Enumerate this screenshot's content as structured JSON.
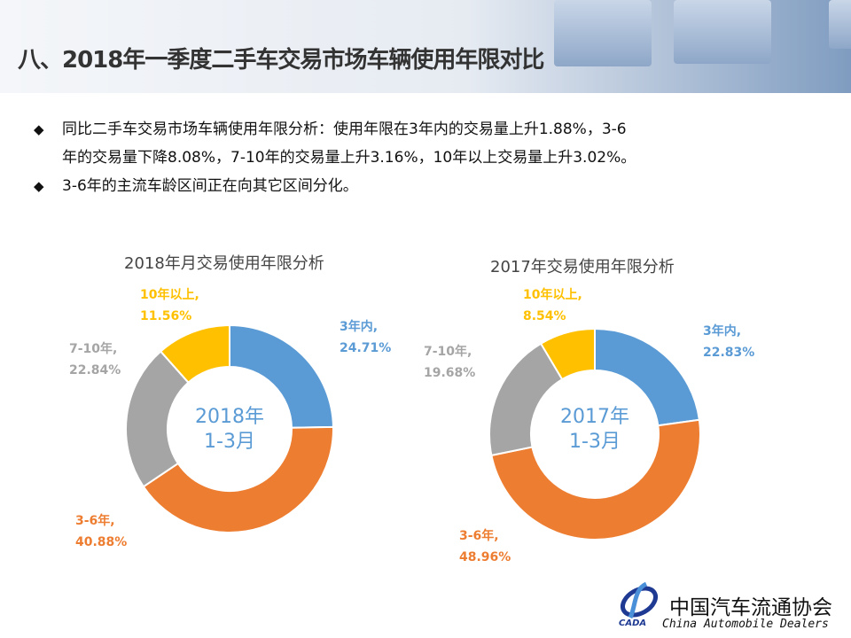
{
  "title": "八、2018年一季度二手车交易市场车辆使用年限对比",
  "bullets": [
    {
      "line1": "同比二手车交易市场车辆使用年限分析：使用年限在3年内的交易量上升1.88%，3-6",
      "line2": "年的交易量下降8.08%，7-10年的交易量上升3.16%，10年以上交易量上升3.02%。"
    },
    {
      "line1": "3-6年的主流车龄区间正在向其它区间分化。"
    }
  ],
  "bullet_icon": "diamond-bullet",
  "chart_data": [
    {
      "type": "pie",
      "title": "2018年月交易使用年限分析",
      "center_line1": "2018年",
      "center_line2": "1-3月",
      "categories": [
        "3年内,",
        "3-6年,",
        "7-10年,",
        "10年以上,"
      ],
      "values": [
        24.71,
        40.88,
        22.84,
        11.56
      ],
      "value_labels": [
        "24.71%",
        "40.88%",
        "22.84%",
        "11.56%"
      ],
      "colors": [
        "#5b9bd5",
        "#ed7d31",
        "#a5a5a5",
        "#ffc000"
      ]
    },
    {
      "type": "pie",
      "title": "2017年交易使用年限分析",
      "center_line1": "2017年",
      "center_line2": "1-3月",
      "categories": [
        "3年内,",
        "3-6年,",
        "7-10年,",
        "10年以上,"
      ],
      "values": [
        22.83,
        48.96,
        19.68,
        8.54
      ],
      "value_labels": [
        "22.83%",
        "48.96%",
        "19.68%",
        "8.54%"
      ],
      "colors": [
        "#5b9bd5",
        "#ed7d31",
        "#a5a5a5",
        "#ffc000"
      ]
    }
  ],
  "logo": {
    "cn": "中国汽车流通协会",
    "en": "China  Automobile Dealers",
    "abbr": "CADA"
  }
}
